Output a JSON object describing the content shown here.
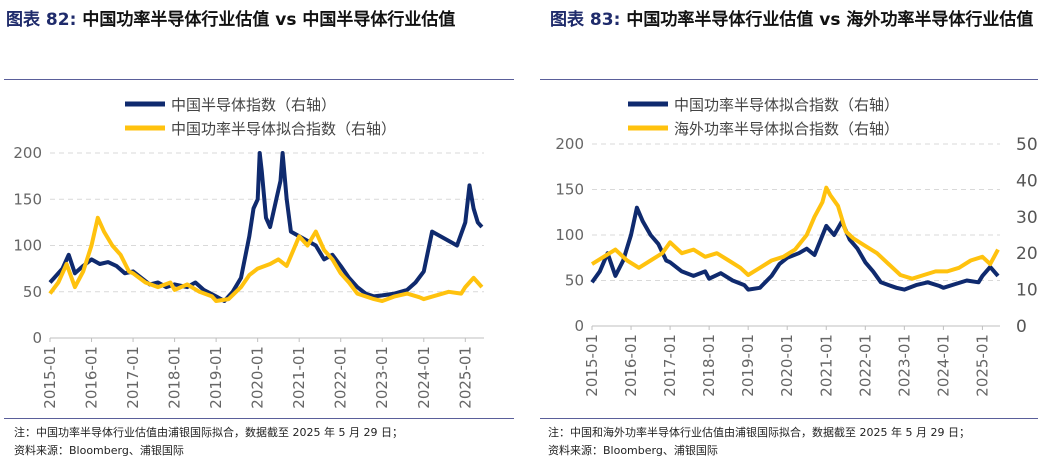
{
  "header": {
    "left": {
      "fig": "图表 82:",
      "text": "中国功率半导体行业估值 vs 中国半导体行业估值"
    },
    "right": {
      "fig": "图表 83:",
      "text": "中国功率半导体行业估值 vs 海外功率半导体行业估值"
    }
  },
  "footer": {
    "left": {
      "note": "注：中国功率半导体行业估值由浦银国际拟合，数据截至 2025 年 5 月 29 日；",
      "source": "资料来源：Bloomberg、浦银国际"
    },
    "right": {
      "note": "注：中国和海外功率半导体行业估值由浦银国际拟合，数据截至 2025 年 5 月 29 日；",
      "source": "资料来源：Bloomberg、浦银国际"
    }
  },
  "colors": {
    "navy": "#0f2a6e",
    "yellow": "#ffc20e",
    "grid": "#d9d9d9"
  },
  "chart_data": [
    {
      "type": "line",
      "title": "",
      "x_ticks": [
        "2015-01",
        "2016-01",
        "2017-01",
        "2018-01",
        "2019-01",
        "2020-01",
        "2021-01",
        "2022-01",
        "2023-01",
        "2024-01",
        "2025-01"
      ],
      "ylim": [
        0,
        200
      ],
      "y_ticks": [
        0,
        50,
        100,
        150,
        200
      ],
      "legend_position": "top-center",
      "grid": true,
      "series": [
        {
          "name": "中国半导体指数（右轴）",
          "color": "#0f2a6e",
          "x": [
            2015.0,
            2015.1,
            2015.3,
            2015.45,
            2015.6,
            2015.8,
            2016.0,
            2016.2,
            2016.4,
            2016.6,
            2016.8,
            2017.0,
            2017.2,
            2017.4,
            2017.6,
            2017.8,
            2018.0,
            2018.3,
            2018.5,
            2018.7,
            2019.0,
            2019.2,
            2019.4,
            2019.6,
            2019.8,
            2019.9,
            2020.0,
            2020.05,
            2020.1,
            2020.2,
            2020.3,
            2020.45,
            2020.55,
            2020.6,
            2020.7,
            2020.8,
            2021.0,
            2021.2,
            2021.4,
            2021.6,
            2021.8,
            2022.0,
            2022.2,
            2022.4,
            2022.6,
            2022.8,
            2023.0,
            2023.3,
            2023.6,
            2023.8,
            2024.0,
            2024.2,
            2024.4,
            2024.6,
            2024.8,
            2025.0,
            2025.1,
            2025.2,
            2025.3,
            2025.4
          ],
          "values": [
            60,
            65,
            75,
            90,
            70,
            78,
            85,
            80,
            82,
            78,
            70,
            72,
            65,
            58,
            60,
            55,
            58,
            55,
            60,
            52,
            45,
            40,
            50,
            65,
            110,
            140,
            150,
            200,
            180,
            130,
            120,
            150,
            170,
            200,
            150,
            115,
            110,
            105,
            100,
            85,
            90,
            78,
            65,
            55,
            48,
            45,
            46,
            48,
            52,
            60,
            72,
            115,
            110,
            105,
            100,
            125,
            165,
            140,
            125,
            120
          ]
        },
        {
          "name": "中国功率半导体拟合指数（右轴）",
          "color": "#ffc20e",
          "x": [
            2015.0,
            2015.2,
            2015.4,
            2015.6,
            2015.8,
            2016.0,
            2016.15,
            2016.3,
            2016.5,
            2016.7,
            2016.9,
            2017.0,
            2017.3,
            2017.6,
            2017.9,
            2018.0,
            2018.3,
            2018.6,
            2018.9,
            2019.0,
            2019.3,
            2019.6,
            2019.8,
            2020.0,
            2020.3,
            2020.5,
            2020.7,
            2021.0,
            2021.2,
            2021.4,
            2021.6,
            2021.8,
            2022.0,
            2022.2,
            2022.4,
            2022.6,
            2022.8,
            2023.0,
            2023.3,
            2023.6,
            2023.9,
            2024.0,
            2024.3,
            2024.6,
            2024.9,
            2025.0,
            2025.2,
            2025.4
          ],
          "values": [
            48,
            60,
            80,
            55,
            72,
            100,
            130,
            115,
            100,
            90,
            72,
            70,
            60,
            55,
            60,
            52,
            58,
            50,
            45,
            40,
            42,
            55,
            68,
            75,
            80,
            85,
            78,
            110,
            100,
            115,
            95,
            85,
            70,
            60,
            48,
            45,
            42,
            40,
            45,
            48,
            44,
            42,
            46,
            50,
            48,
            55,
            65,
            55
          ]
        }
      ]
    },
    {
      "type": "line",
      "title": "",
      "x_ticks": [
        "2015-01",
        "2016-01",
        "2017-01",
        "2018-01",
        "2019-01",
        "2020-01",
        "2021-01",
        "2022-01",
        "2023-01",
        "2024-01",
        "2025-01"
      ],
      "ylim": [
        0,
        200
      ],
      "y_ticks": [
        0,
        50,
        100,
        150,
        200
      ],
      "y2lim": [
        0,
        50
      ],
      "y2_ticks": [
        0,
        10,
        20,
        30,
        40,
        50
      ],
      "legend_position": "top-center",
      "grid": true,
      "series": [
        {
          "name": "中国功率半导体拟合指数（右轴）",
          "color": "#0f2a6e",
          "axis": "left",
          "x": [
            2015.0,
            2015.2,
            2015.4,
            2015.6,
            2015.8,
            2016.0,
            2016.15,
            2016.3,
            2016.5,
            2016.7,
            2016.9,
            2017.0,
            2017.3,
            2017.6,
            2017.9,
            2018.0,
            2018.3,
            2018.6,
            2018.9,
            2019.0,
            2019.3,
            2019.6,
            2019.8,
            2020.0,
            2020.3,
            2020.5,
            2020.7,
            2021.0,
            2021.2,
            2021.4,
            2021.6,
            2021.8,
            2022.0,
            2022.2,
            2022.4,
            2022.6,
            2022.8,
            2023.0,
            2023.3,
            2023.6,
            2023.9,
            2024.0,
            2024.3,
            2024.6,
            2024.9,
            2025.0,
            2025.2,
            2025.4
          ],
          "values": [
            48,
            60,
            80,
            55,
            72,
            100,
            130,
            115,
            100,
            90,
            72,
            70,
            60,
            55,
            60,
            52,
            58,
            50,
            45,
            40,
            42,
            55,
            68,
            75,
            80,
            85,
            78,
            110,
            100,
            115,
            95,
            85,
            70,
            60,
            48,
            45,
            42,
            40,
            45,
            48,
            44,
            42,
            46,
            50,
            48,
            55,
            65,
            55
          ]
        },
        {
          "name": "海外功率半导体拟合指数（右轴）",
          "color": "#ffc20e",
          "axis": "right",
          "x": [
            2015.0,
            2015.3,
            2015.6,
            2015.9,
            2016.2,
            2016.5,
            2016.8,
            2017.0,
            2017.3,
            2017.6,
            2017.9,
            2018.2,
            2018.5,
            2018.8,
            2019.0,
            2019.3,
            2019.6,
            2019.9,
            2020.2,
            2020.5,
            2020.7,
            2020.9,
            2021.0,
            2021.1,
            2021.3,
            2021.5,
            2021.7,
            2022.0,
            2022.3,
            2022.6,
            2022.9,
            2023.2,
            2023.5,
            2023.8,
            2024.1,
            2024.4,
            2024.7,
            2025.0,
            2025.2,
            2025.4
          ],
          "values": [
            17,
            19,
            21,
            18,
            16,
            18,
            20,
            23,
            20,
            21,
            19,
            20,
            18,
            16,
            14,
            16,
            18,
            19,
            21,
            25,
            30,
            34,
            38,
            36,
            33,
            26,
            24,
            22,
            20,
            17,
            14,
            13,
            14,
            15,
            15,
            16,
            18,
            19,
            17,
            21
          ]
        }
      ]
    }
  ]
}
